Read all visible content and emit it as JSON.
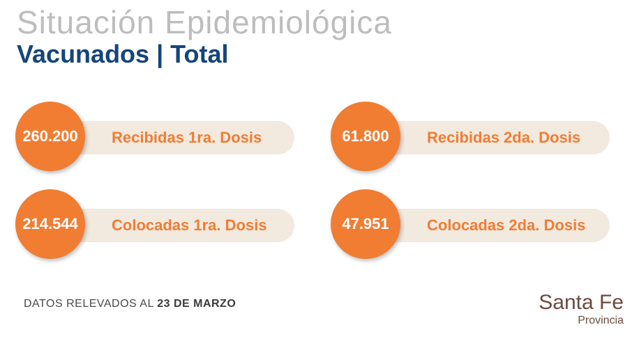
{
  "header": {
    "title": "Situación Epidemiológica",
    "subtitle": "Vacunados | Total"
  },
  "stats": [
    {
      "value": "260.200",
      "label": "Recibidas 1ra. Dosis"
    },
    {
      "value": "61.800",
      "label": "Recibidas 2da. Dosis"
    },
    {
      "value": "214.544",
      "label": "Colocadas 1ra. Dosis"
    },
    {
      "value": "47.951",
      "label": "Colocadas 2da. Dosis"
    }
  ],
  "footer": {
    "note_prefix": "DATOS RELEVADOS AL ",
    "note_date": "23 DE MARZO"
  },
  "brand": {
    "name": "Santa Fe",
    "sub": "Provincia"
  },
  "colors": {
    "accent": "#f07d32",
    "title_blue": "#15457a",
    "pill_bg": "#f2e9df",
    "brand": "#6b4a3e"
  }
}
